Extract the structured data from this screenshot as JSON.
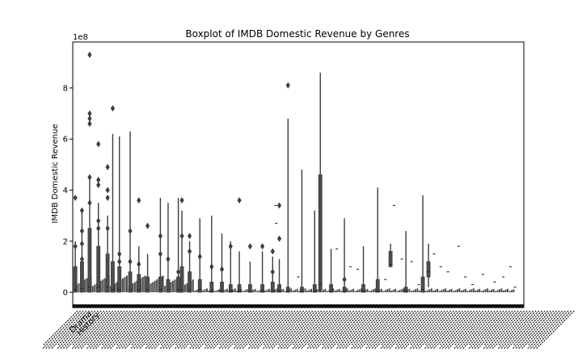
{
  "chart_data": {
    "type": "box",
    "title": "Boxplot of IMDB Domestic Revenue by Genres",
    "ylabel": "IMDB Domestic Revenue",
    "xlabel": "",
    "offset_label": "1e8",
    "y_scale_multiplier": 100000000,
    "ylim": [
      -0.6,
      9.8
    ],
    "yticks": [
      0,
      2,
      4,
      6,
      8
    ],
    "ytick_labels": [
      "0",
      "2",
      "4",
      "6",
      "8"
    ],
    "grid": false,
    "legend": "none",
    "first_category_labels": [
      "Drama",
      "History"
    ],
    "box_color": "#4d4d4d",
    "box_edge_color": "#3c3c3c",
    "boxes": [
      {
        "x": 0.5,
        "q1": 0.0,
        "med": 0.1,
        "q3": 1.0,
        "lo": 0.0,
        "hi": 2.0,
        "out": [
          3.7,
          1.8
        ]
      },
      {
        "x": 1.8,
        "q1": 0.0,
        "med": 0.15,
        "q3": 1.2,
        "lo": 0.0,
        "hi": 3.2,
        "out": [
          3.2,
          2.4,
          1.9,
          1.3
        ]
      },
      {
        "x": 3.3,
        "q1": 0.0,
        "med": 0.2,
        "q3": 2.5,
        "lo": 0.0,
        "hi": 4.5,
        "out": [
          9.3,
          7.0,
          6.8,
          6.6,
          4.5,
          3.5
        ]
      },
      {
        "x": 5.0,
        "q1": 0.0,
        "med": 0.2,
        "q3": 1.8,
        "lo": 0.0,
        "hi": 3.5,
        "out": [
          5.8,
          4.4,
          4.2,
          2.8,
          2.5
        ]
      },
      {
        "x": 6.8,
        "q1": 0.0,
        "med": 0.2,
        "q3": 1.5,
        "lo": 0.0,
        "hi": 3.0,
        "out": [
          4.9,
          4.0,
          3.7,
          2.5
        ]
      },
      {
        "x": 7.8,
        "q1": 0.0,
        "med": 0.1,
        "q3": 1.2,
        "lo": 0.0,
        "hi": 6.2,
        "out": [
          7.2
        ]
      },
      {
        "x": 9.1,
        "q1": 0.0,
        "med": 0.1,
        "q3": 1.0,
        "lo": 0.0,
        "hi": 6.1,
        "out": [
          1.5,
          1.2
        ]
      },
      {
        "x": 11.2,
        "q1": 0.0,
        "med": 0.1,
        "q3": 0.8,
        "lo": 0.0,
        "hi": 6.3,
        "out": [
          2.4,
          1.2
        ]
      },
      {
        "x": 12.9,
        "q1": 0.0,
        "med": 0.1,
        "q3": 0.7,
        "lo": 0.0,
        "hi": 1.8,
        "out": [
          3.6,
          1.1
        ]
      },
      {
        "x": 14.6,
        "q1": 0.0,
        "med": 0.1,
        "q3": 0.6,
        "lo": 0.0,
        "hi": 1.5,
        "out": [
          2.6
        ]
      },
      {
        "x": 17.1,
        "q1": 0.0,
        "med": 0.1,
        "q3": 0.6,
        "lo": 0.0,
        "hi": 3.7,
        "out": [
          2.2,
          1.5
        ]
      },
      {
        "x": 18.6,
        "q1": 0.0,
        "med": 0.1,
        "q3": 0.5,
        "lo": 0.0,
        "hi": 3.5,
        "out": [
          1.3
        ]
      },
      {
        "x": 20.6,
        "q1": 0.0,
        "med": 0.1,
        "q3": 0.6,
        "lo": 0.0,
        "hi": 3.7,
        "out": [
          0.8
        ]
      },
      {
        "x": 21.3,
        "q1": 0.0,
        "med": 0.1,
        "q3": 1.0,
        "lo": 0.0,
        "hi": 3.2,
        "out": [
          3.6,
          2.2
        ]
      },
      {
        "x": 22.8,
        "q1": 0.0,
        "med": 0.1,
        "q3": 0.8,
        "lo": 0.0,
        "hi": 2.0,
        "out": [
          2.2,
          1.6
        ]
      },
      {
        "x": 24.8,
        "q1": 0.0,
        "med": 0.1,
        "q3": 0.5,
        "lo": 0.0,
        "hi": 2.9,
        "out": [
          1.4
        ]
      },
      {
        "x": 27.1,
        "q1": 0.0,
        "med": 0.05,
        "q3": 0.4,
        "lo": 0.0,
        "hi": 3.0,
        "out": [
          1.0
        ]
      },
      {
        "x": 29.1,
        "q1": 0.0,
        "med": 0.05,
        "q3": 0.4,
        "lo": 0.0,
        "hi": 2.3,
        "out": [
          0.9
        ]
      },
      {
        "x": 30.8,
        "q1": 0.0,
        "med": 0.05,
        "q3": 0.3,
        "lo": 0.0,
        "hi": 2.0,
        "out": [
          1.8
        ]
      },
      {
        "x": 32.5,
        "q1": 0.0,
        "med": 0.05,
        "q3": 0.3,
        "lo": 0.0,
        "hi": 1.6,
        "out": [
          3.6
        ]
      },
      {
        "x": 34.6,
        "q1": 0.0,
        "med": 0.05,
        "q3": 0.3,
        "lo": 0.0,
        "hi": 1.2,
        "out": [
          1.8
        ]
      },
      {
        "x": 37.0,
        "q1": 0.0,
        "med": 0.05,
        "q3": 0.3,
        "lo": 0.0,
        "hi": 1.6,
        "out": [
          1.8
        ]
      },
      {
        "x": 39.0,
        "q1": 0.0,
        "med": 0.05,
        "q3": 0.4,
        "lo": 0.0,
        "hi": 1.4,
        "out": [
          1.6,
          0.8
        ]
      },
      {
        "x": 40.3,
        "q1": 0.0,
        "med": 0.05,
        "q3": 0.3,
        "lo": 0.0,
        "hi": 1.3,
        "out": [
          2.1,
          3.4
        ]
      },
      {
        "x": 42.0,
        "q1": 0.0,
        "med": 0.05,
        "q3": 0.2,
        "lo": 0.0,
        "hi": 6.8,
        "out": [
          8.1
        ]
      },
      {
        "x": 44.7,
        "q1": 0.0,
        "med": 0.05,
        "q3": 0.2,
        "lo": 0.0,
        "hi": 4.8,
        "out": []
      },
      {
        "x": 47.2,
        "q1": 0.0,
        "med": 0.05,
        "q3": 0.3,
        "lo": 0.0,
        "hi": 3.2,
        "out": []
      },
      {
        "x": 48.3,
        "q1": 0.1,
        "med": 0.3,
        "q3": 4.6,
        "lo": 0.0,
        "hi": 8.6,
        "out": []
      },
      {
        "x": 50.4,
        "q1": 0.0,
        "med": 0.05,
        "q3": 0.3,
        "lo": 0.0,
        "hi": 1.7,
        "out": []
      },
      {
        "x": 53.0,
        "q1": 0.0,
        "med": 0.05,
        "q3": 0.2,
        "lo": 0.0,
        "hi": 2.9,
        "out": [
          0.5
        ]
      },
      {
        "x": 56.7,
        "q1": 0.0,
        "med": 0.05,
        "q3": 0.3,
        "lo": 0.0,
        "hi": 1.8,
        "out": []
      },
      {
        "x": 59.5,
        "q1": 0.0,
        "med": 0.05,
        "q3": 0.5,
        "lo": 0.0,
        "hi": 4.1,
        "out": []
      },
      {
        "x": 62.0,
        "q1": 1.0,
        "med": 1.1,
        "q3": 1.6,
        "lo": 1.0,
        "hi": 1.9,
        "out": []
      },
      {
        "x": 65.0,
        "q1": 0.0,
        "med": 0.05,
        "q3": 0.2,
        "lo": 0.0,
        "hi": 2.4,
        "out": []
      },
      {
        "x": 68.3,
        "q1": 0.0,
        "med": 0.1,
        "q3": 0.6,
        "lo": 0.0,
        "hi": 3.8,
        "out": []
      },
      {
        "x": 69.4,
        "q1": 0.6,
        "med": 0.8,
        "q3": 1.2,
        "lo": 0.2,
        "hi": 1.9,
        "out": []
      }
    ],
    "ticks_short": [
      {
        "x": 39.6,
        "y": 3.4
      },
      {
        "x": 39.7,
        "y": 2.7
      },
      {
        "x": 44.0,
        "y": 0.6
      },
      {
        "x": 51.5,
        "y": 1.7
      },
      {
        "x": 54.2,
        "y": 1.0
      },
      {
        "x": 55.6,
        "y": 0.9
      },
      {
        "x": 61.0,
        "y": 0.5
      },
      {
        "x": 62.7,
        "y": 3.4
      },
      {
        "x": 64.2,
        "y": 1.3
      },
      {
        "x": 66.1,
        "y": 1.2
      },
      {
        "x": 67.5,
        "y": 0.3
      },
      {
        "x": 70.5,
        "y": 1.5
      },
      {
        "x": 71.8,
        "y": 1.0
      },
      {
        "x": 73.2,
        "y": 0.8
      },
      {
        "x": 75.3,
        "y": 1.8
      },
      {
        "x": 76.6,
        "y": 0.6
      },
      {
        "x": 78.0,
        "y": 0.3
      },
      {
        "x": 80.0,
        "y": 0.7
      },
      {
        "x": 82.3,
        "y": 0.4
      },
      {
        "x": 84.0,
        "y": 0.6
      },
      {
        "x": 85.4,
        "y": 1.0
      },
      {
        "x": 86.3,
        "y": 0.2
      }
    ]
  }
}
